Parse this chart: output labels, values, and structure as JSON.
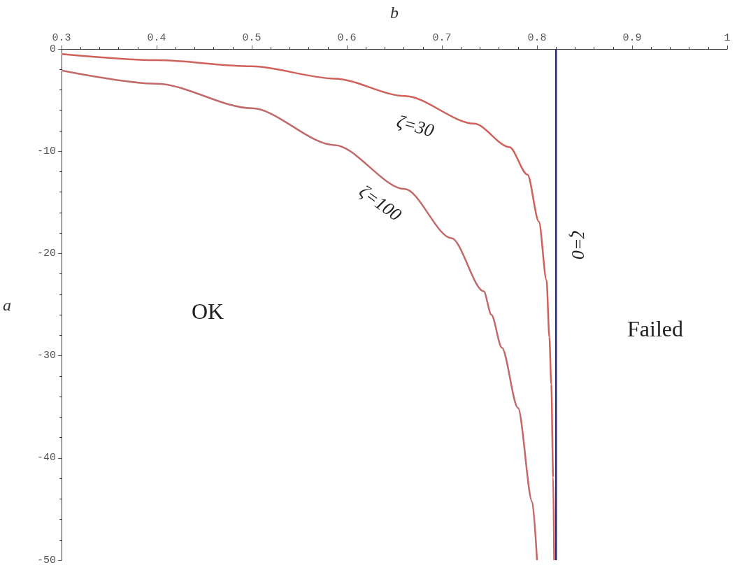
{
  "chart_data": {
    "type": "line",
    "xlabel": "b",
    "ylabel": "a",
    "xlim": [
      0.3,
      1
    ],
    "ylim": [
      -50,
      0
    ],
    "xticks": [
      0.3,
      0.4,
      0.5,
      0.6,
      0.7,
      0.8,
      0.9,
      1
    ],
    "yticks": [
      -50,
      -40,
      -30,
      -20,
      -10,
      0
    ],
    "series": [
      {
        "name": "ζ=30",
        "color": "#d0605a",
        "x": [
          0.3,
          0.4,
          0.5,
          0.587,
          0.661,
          0.734,
          0.771,
          0.79,
          0.802,
          0.81,
          0.813,
          0.815,
          0.817,
          0.818
        ],
        "values": [
          -0.5,
          -1.1,
          -1.7,
          -2.9,
          -4.6,
          -7.3,
          -9.6,
          -12.3,
          -16.9,
          -22.6,
          -28.2,
          -32.8,
          -41.9,
          -50
        ]
      },
      {
        "name": "ζ=100",
        "color": "#c26a6a",
        "x": [
          0.3,
          0.4,
          0.5,
          0.587,
          0.661,
          0.71,
          0.744,
          0.752,
          0.763,
          0.78,
          0.795,
          0.8
        ],
        "values": [
          -2.1,
          -3.4,
          -5.8,
          -9.4,
          -13.7,
          -18.5,
          -23.7,
          -26,
          -29.2,
          -35.1,
          -44.3,
          -50
        ]
      },
      {
        "name": "ζ=0",
        "color": "#2b2b6b",
        "x": [
          0.82,
          0.82
        ],
        "values": [
          0,
          -50
        ]
      }
    ],
    "annotations": [
      "OK",
      "Failed"
    ]
  }
}
